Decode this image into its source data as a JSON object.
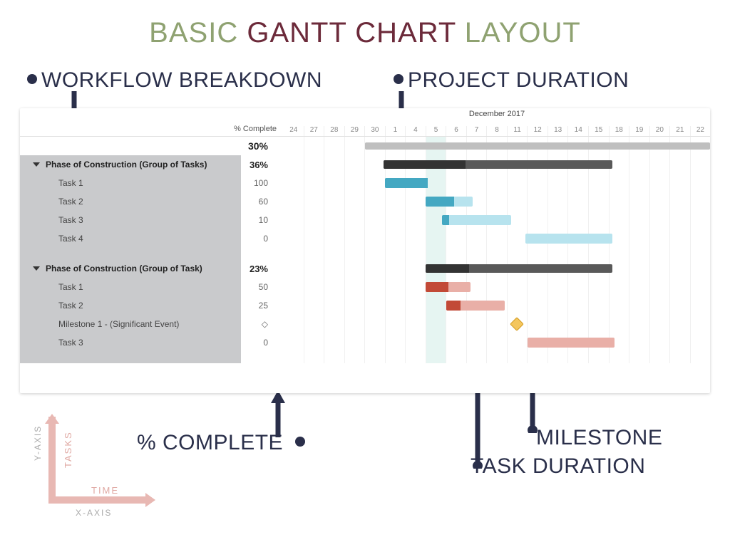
{
  "title": {
    "w1": "BASIC",
    "w2": "GANTT CHART",
    "w3": "LAYOUT"
  },
  "title_colors": {
    "w1": "#8fa271",
    "w2": "#6c2a3a",
    "w3": "#8fa271"
  },
  "title_fontsize": 40,
  "callouts": {
    "workflow": "WORKFLOW BREAKDOWN",
    "project_duration": "PROJECT DURATION",
    "pct_complete": "% COMPLETE",
    "milestone": "MILESTONE",
    "task_duration": "TASK DURATION"
  },
  "callout_color": "#2a2f4a",
  "callout_fontsize": 30,
  "chart": {
    "pct_header": "% Complete",
    "month_label": "December 2017",
    "days": [
      24,
      27,
      28,
      29,
      30,
      1,
      4,
      5,
      6,
      7,
      8,
      11,
      12,
      13,
      14,
      15,
      18,
      19,
      20,
      21,
      22
    ],
    "today_index": 7,
    "today_bg": "#e6f5f2",
    "overall_pct": "30%",
    "overall_bar": {
      "start_idx": 4,
      "end_idx": 21,
      "color": "#bfbfbf"
    },
    "phases": [
      {
        "label": "Phase of Construction (Group of Tasks)",
        "pct": "36%",
        "group_bar": {
          "start_idx": 4.9,
          "end_idx": 16.2,
          "color": "#595959",
          "fill_pct": 36
        },
        "tasks": [
          {
            "label": "Task 1",
            "pct": "100",
            "bar": {
              "start_idx": 5,
              "end_idx": 7.1,
              "color_light": "#a6dbe8",
              "color_dark": "#44a8c2",
              "fill_pct": 100
            }
          },
          {
            "label": "Task 2",
            "pct": "60",
            "bar": {
              "start_idx": 7,
              "end_idx": 9.3,
              "color_light": "#b7e3ee",
              "color_dark": "#44a8c2",
              "fill_pct": 60
            }
          },
          {
            "label": "Task 3",
            "pct": "10",
            "bar": {
              "start_idx": 7.8,
              "end_idx": 11.2,
              "color_light": "#b7e3ee",
              "color_dark": "#44a8c2",
              "fill_pct": 10
            }
          },
          {
            "label": "Task 4",
            "pct": "0",
            "bar": {
              "start_idx": 11.9,
              "end_idx": 16.2,
              "color_light": "#b7e3ee",
              "color_dark": "#44a8c2",
              "fill_pct": 0
            }
          }
        ]
      },
      {
        "label": "Phase of Construction (Group of Task)",
        "pct": "23%",
        "group_bar": {
          "start_idx": 7,
          "end_idx": 16.2,
          "color": "#595959",
          "fill_pct": 23
        },
        "tasks": [
          {
            "label": "Task 1",
            "pct": "50",
            "bar": {
              "start_idx": 7,
              "end_idx": 9.2,
              "color_light": "#e9afa7",
              "color_dark": "#c24a37",
              "fill_pct": 50
            }
          },
          {
            "label": "Task 2",
            "pct": "25",
            "bar": {
              "start_idx": 8,
              "end_idx": 10.9,
              "color_light": "#e9afa7",
              "color_dark": "#c24a37",
              "fill_pct": 25
            }
          },
          {
            "label": "Milestone 1 - (Significant Event)",
            "pct": "◇",
            "milestone": {
              "idx": 11.5,
              "fill": "#f4c65e",
              "stroke": "#d39a1e"
            }
          },
          {
            "label": "Task 3",
            "pct": "0",
            "bar": {
              "start_idx": 12,
              "end_idx": 16.3,
              "color_light": "#e9afa7",
              "color_dark": "#c24a37",
              "fill_pct": 0
            }
          }
        ]
      }
    ]
  },
  "axis": {
    "y": "Y-AXIS",
    "x": "X-AXIS",
    "tasks": "TASKS",
    "time": "TIME"
  },
  "axis_color": "#e8b8b3"
}
